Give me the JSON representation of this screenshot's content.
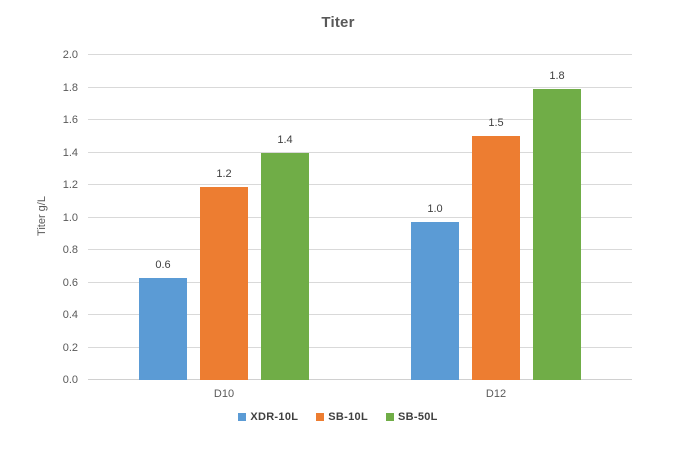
{
  "chart_data": {
    "type": "bar",
    "title": "Titer",
    "categories": [
      "D10",
      "D12"
    ],
    "series": [
      {
        "name": "XDR-10L",
        "color": "#5B9BD5",
        "values": [
          0.6,
          1.0
        ],
        "values_plotted": [
          0.63,
          0.97
        ],
        "data_labels": [
          "0.6",
          "1.0"
        ]
      },
      {
        "name": "SB-10L",
        "color": "#ED7D31",
        "values": [
          1.2,
          1.5
        ],
        "values_plotted": [
          1.19,
          1.5
        ],
        "data_labels": [
          "1.2",
          "1.5"
        ]
      },
      {
        "name": "SB-50L",
        "color": "#70AD47",
        "values": [
          1.4,
          1.8
        ],
        "values_plotted": [
          1.4,
          1.79
        ],
        "data_labels": [
          "1.4",
          "1.8"
        ]
      }
    ],
    "xlabel": "",
    "ylabel": "Titer g/L",
    "ylim": [
      0.0,
      2.0
    ],
    "ytick_step": 0.2,
    "ytick_labels": [
      "0.0",
      "0.2",
      "0.4",
      "0.6",
      "0.8",
      "1.0",
      "1.2",
      "1.4",
      "1.6",
      "1.8",
      "2.0"
    ],
    "grid": true,
    "gridline_color": "#D9D9D9",
    "axis_line_color": "#D0D0D0",
    "title_color": "#595959",
    "tick_label_color": "#595959",
    "data_label_color": "#404040",
    "legend_position": "bottom",
    "show_data_labels": true
  }
}
